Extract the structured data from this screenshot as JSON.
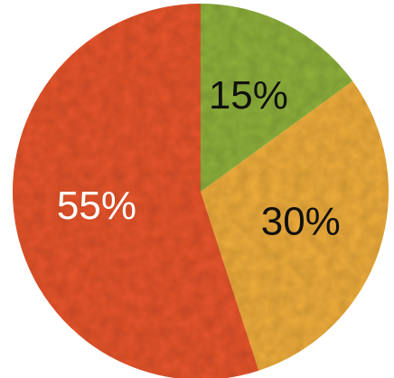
{
  "chart_data": {
    "type": "pie",
    "values": [
      15,
      30,
      55
    ],
    "value_labels": [
      "15%",
      "30%",
      "55%"
    ],
    "colors": [
      "#8fb23c",
      "#f0ae3c",
      "#e8552c"
    ],
    "label_colors": [
      "#111111",
      "#111111",
      "#ffffff"
    ]
  }
}
